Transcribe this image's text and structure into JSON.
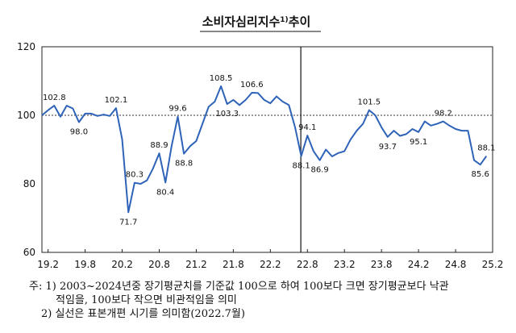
{
  "chart_data": {
    "type": "line",
    "title": "소비자심리지수",
    "title_sup": "1)",
    "title_suffix": "추이",
    "ylim": [
      60,
      120
    ],
    "yticks": [
      60,
      80,
      100,
      120
    ],
    "xtick_labels": [
      "19.2",
      "19.8",
      "20.2",
      "20.8",
      "21.2",
      "21.8",
      "22.2",
      "22.8",
      "23.2",
      "23.8",
      "24.2",
      "24.8",
      "25.2"
    ],
    "xtick_months": [
      1,
      7,
      13,
      19,
      25,
      31,
      37,
      43,
      49,
      55,
      61,
      67,
      73
    ],
    "reference_line": {
      "value": 100,
      "style": "dotted"
    },
    "series_break_line": {
      "month": 42,
      "style": "solid"
    },
    "series": [
      {
        "name": "소비자심리지수",
        "color": "#2e63b8",
        "x_start_month": 0,
        "values": [
          100.0,
          101.5,
          102.8,
          99.6,
          102.8,
          102.0,
          98.0,
          100.5,
          100.5,
          99.8,
          100.2,
          99.8,
          102.1,
          93.0,
          71.7,
          80.3,
          80.0,
          81.0,
          84.5,
          88.9,
          80.4,
          91.0,
          99.6,
          88.8,
          91.0,
          92.5,
          97.5,
          102.5,
          104.0,
          108.5,
          103.3,
          104.5,
          103.0,
          104.5,
          106.6,
          106.5,
          104.5,
          103.5,
          105.5,
          104.0,
          103.0,
          96.5,
          88.1,
          94.1,
          89.5,
          86.9,
          90.0,
          88.0,
          89.0,
          89.5,
          93.0,
          95.5,
          97.5,
          101.5,
          100.0,
          96.5,
          93.7,
          95.5,
          94.0,
          94.5,
          96.0,
          95.1,
          98.2,
          97.0,
          97.5,
          98.2,
          97.0,
          96.0,
          95.5,
          95.5,
          86.9,
          85.6,
          88.1
        ]
      }
    ],
    "data_labels": [
      {
        "month": 2,
        "value": 102.8,
        "text": "102.8",
        "pos": "above"
      },
      {
        "month": 6,
        "value": 98.0,
        "text": "98.0",
        "pos": "below"
      },
      {
        "month": 12,
        "value": 102.1,
        "text": "102.1",
        "pos": "above"
      },
      {
        "month": 14,
        "value": 71.7,
        "text": "71.7",
        "pos": "below"
      },
      {
        "month": 15,
        "value": 80.3,
        "text": "80.3",
        "pos": "above"
      },
      {
        "month": 19,
        "value": 88.9,
        "text": "88.9",
        "pos": "above"
      },
      {
        "month": 20,
        "value": 80.4,
        "text": "80.4",
        "pos": "below"
      },
      {
        "month": 22,
        "value": 99.6,
        "text": "99.6",
        "pos": "above"
      },
      {
        "month": 23,
        "value": 88.8,
        "text": "88.8",
        "pos": "below"
      },
      {
        "month": 29,
        "value": 108.5,
        "text": "108.5",
        "pos": "above"
      },
      {
        "month": 30,
        "value": 103.3,
        "text": "103.3",
        "pos": "below"
      },
      {
        "month": 34,
        "value": 106.6,
        "text": "106.6",
        "pos": "above"
      },
      {
        "month": 42,
        "value": 88.1,
        "text": "88.1",
        "pos": "below"
      },
      {
        "month": 43,
        "value": 94.1,
        "text": "94.1",
        "pos": "above"
      },
      {
        "month": 45,
        "value": 86.9,
        "text": "86.9",
        "pos": "below"
      },
      {
        "month": 53,
        "value": 101.5,
        "text": "101.5",
        "pos": "above"
      },
      {
        "month": 56,
        "value": 93.7,
        "text": "93.7",
        "pos": "below"
      },
      {
        "month": 61,
        "value": 95.1,
        "text": "95.1",
        "pos": "below"
      },
      {
        "month": 65,
        "value": 98.2,
        "text": "98.2",
        "pos": "above"
      },
      {
        "month": 71,
        "value": 85.6,
        "text": "85.6",
        "pos": "below"
      },
      {
        "month": 72,
        "value": 88.1,
        "text": "88.1",
        "pos": "above"
      }
    ]
  },
  "notes": {
    "line1": "주: 1) 2003~2024년중 장기평균치를 기준값 100으로 하여 100보다 크면 장기평균보다 낙관",
    "line2": "적임을, 100보다 작으면 비관적임을 의미",
    "line3": "2) 실선은 표본개편 시기를 의미함(2022.7월)"
  }
}
